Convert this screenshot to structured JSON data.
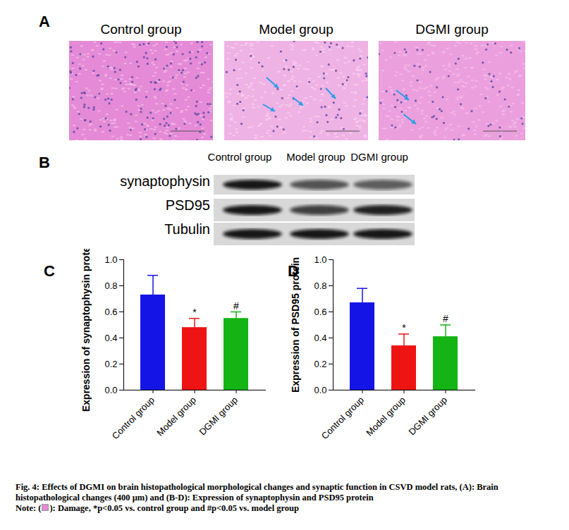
{
  "panel_labels": [
    "A",
    "B",
    "C",
    "D"
  ],
  "panel_a": {
    "titles": [
      "Control group",
      "Model group",
      "DGMI group"
    ]
  },
  "panel_b": {
    "columns": [
      "Control group",
      "Model group",
      "DGMI group"
    ],
    "rows": [
      "synaptophysin",
      "PSD95",
      "Tubulin"
    ]
  },
  "chart_data": [
    {
      "type": "bar",
      "y_label": "Expression of synaptophysin protein",
      "categories": [
        "Control group",
        "Model group",
        "DGMI group"
      ],
      "values": [
        0.73,
        0.48,
        0.55
      ],
      "errors": [
        0.15,
        0.07,
        0.05
      ],
      "annotations": [
        null,
        "*",
        "#"
      ],
      "colors": [
        "#1414e6",
        "#ee1414",
        "#14b414"
      ],
      "ylim": [
        0,
        1
      ],
      "yticks": [
        {
          "value": 0,
          "label": "0.0"
        },
        0.2,
        0.4,
        0.6,
        0.8,
        {
          "value": 1,
          "label": "1.0"
        }
      ]
    },
    {
      "type": "bar",
      "y_label": "Expression of PSD95 protein",
      "categories": [
        "Control group",
        "Model group",
        "DGMI group"
      ],
      "values": [
        0.67,
        0.34,
        0.41
      ],
      "errors": [
        0.11,
        0.09,
        0.09
      ],
      "annotations": [
        null,
        "*",
        "#"
      ],
      "colors": [
        "#1414e6",
        "#ee1414",
        "#14b414"
      ],
      "ylim": [
        0,
        1
      ],
      "yticks": [
        {
          "value": 0,
          "label": "0.0"
        },
        0.2,
        0.4,
        0.6,
        0.8,
        {
          "value": 1,
          "label": "1.0"
        }
      ]
    }
  ],
  "caption": "Fig. 4: Effects of DGMI on brain histopathological morphological changes and synaptic function in CSVD model rats, (A): Brain histopathological changes (400 μm) and (B-D): Expression of synaptophysin and PSD95 protein",
  "note": [
    "Note: (",
    "): Damage, *p<0.05 vs. control group and #p<0.05 vs. model group"
  ]
}
